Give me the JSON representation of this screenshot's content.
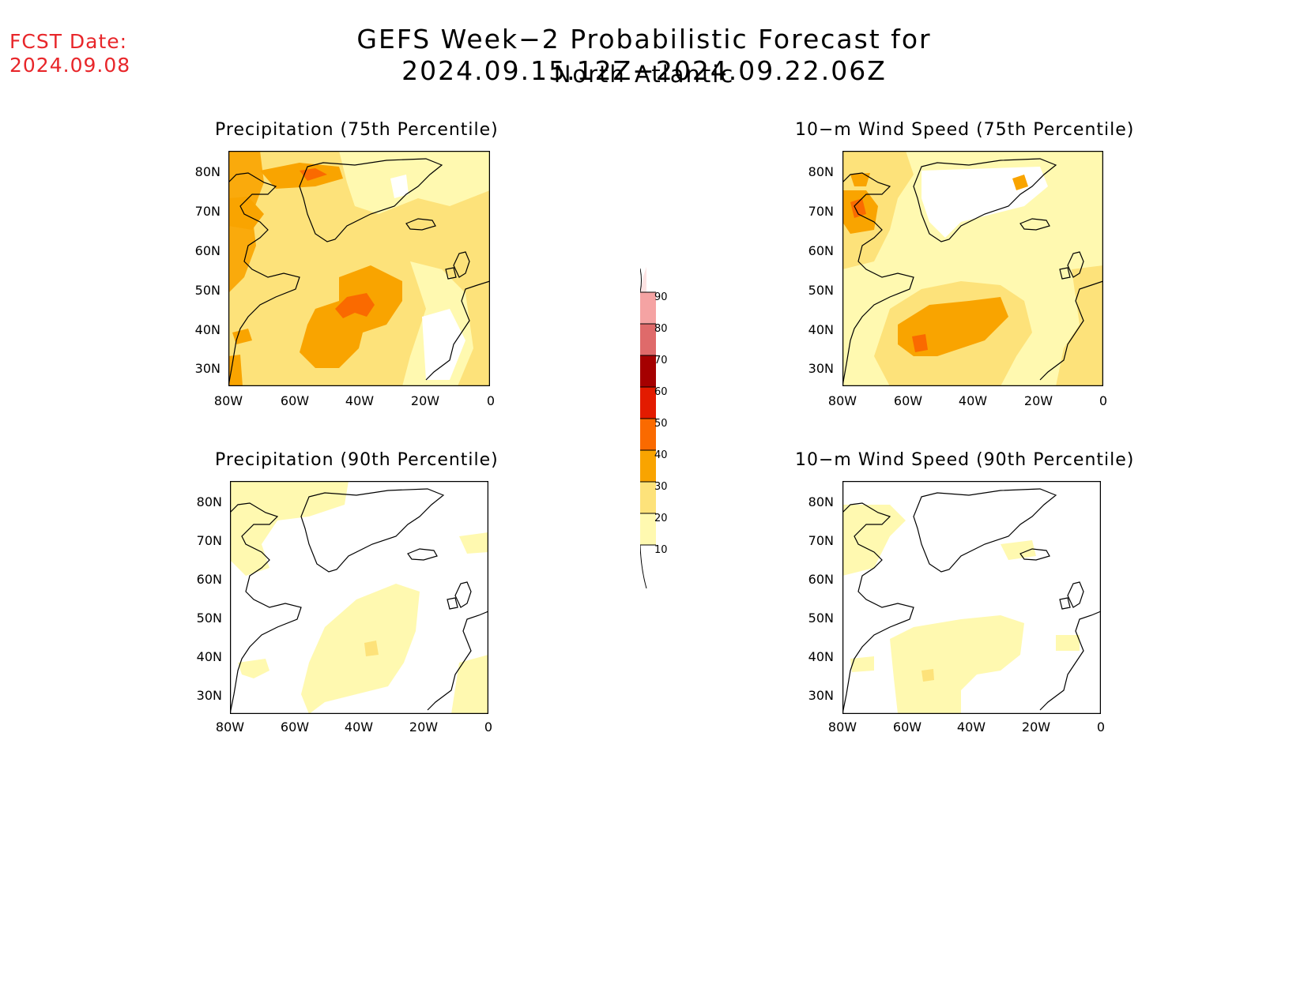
{
  "header": {
    "fcst_label": "FCST Date:",
    "fcst_date": "2024.09.08",
    "title": "GEFS Week−2 Probabilistic Forecast for 2024.09.15.12Z−2024.09.22.06Z",
    "subtitle": "North Atlantic"
  },
  "panels": [
    {
      "title": "Precipitation (75th Percentile)"
    },
    {
      "title": "10−m Wind Speed (75th Percentile)"
    },
    {
      "title": "Precipitation (90th Percentile)"
    },
    {
      "title": "10−m Wind Speed (90th Percentile)"
    }
  ],
  "axes": {
    "lat_labels": [
      "80N",
      "70N",
      "60N",
      "50N",
      "40N",
      "30N"
    ],
    "lon_labels": [
      "80W",
      "60W",
      "40W",
      "20W",
      "0"
    ]
  },
  "colorbar": {
    "labels": [
      "90",
      "80",
      "70",
      "60",
      "50",
      "40",
      "30",
      "20",
      "10"
    ],
    "colors": {
      "10-20": "#fff9b0",
      "20-30": "#fde27a",
      "30-40": "#f9a400",
      "40-50": "#fa6a00",
      "50-60": "#e31b00",
      "60-70": "#a50000",
      "70-80": "#df6a6a",
      "80-90": "#f5a3a3",
      "90+": "#fde3e3"
    }
  }
}
